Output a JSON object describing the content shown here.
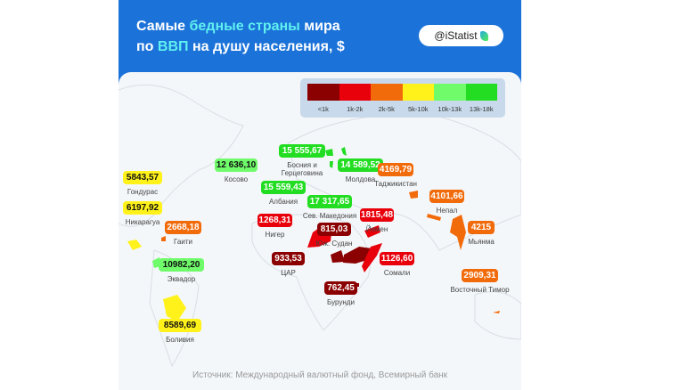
{
  "header": {
    "title_parts": [
      "Самые ",
      "бедные страны",
      " мира",
      "по ",
      "ВВП",
      " на душу населения, $"
    ],
    "brand": "@iStatist"
  },
  "legend": [
    {
      "label": "<1k",
      "color": "#8b0000"
    },
    {
      "label": "1k-2k",
      "color": "#e8000b"
    },
    {
      "label": "2k-5k",
      "color": "#f26b0b"
    },
    {
      "label": "5k-10k",
      "color": "#fff21a"
    },
    {
      "label": "10k-13k",
      "color": "#6ffb6a"
    },
    {
      "label": "13k-18k",
      "color": "#22dd22"
    }
  ],
  "countries": [
    {
      "name": "Косово",
      "value": "12 636,10",
      "cat": 4
    },
    {
      "name": "Босния и Герцеговина",
      "value": "15 555,67",
      "cat": 5
    },
    {
      "name": "Молдова",
      "value": "14 589,52",
      "cat": 5
    },
    {
      "name": "Албания",
      "value": "15 559,43",
      "cat": 5
    },
    {
      "name": "Сев. Македония",
      "value": "17 317,65",
      "cat": 5
    },
    {
      "name": "Нигер",
      "value": "1268,31",
      "cat": 1
    },
    {
      "name": "Юж. Судан",
      "value": "815,03",
      "cat": 0
    },
    {
      "name": "Йемен",
      "value": "1815,48",
      "cat": 1
    },
    {
      "name": "ЦАР",
      "value": "933,53",
      "cat": 0
    },
    {
      "name": "Сомали",
      "value": "1126,60",
      "cat": 1
    },
    {
      "name": "Бурунди",
      "value": "762,45",
      "cat": 0
    },
    {
      "name": "Таджикистан",
      "value": "4169,79",
      "cat": 2
    },
    {
      "name": "Непал",
      "value": "4101,66",
      "cat": 2
    },
    {
      "name": "Мьянма",
      "value": "4215",
      "cat": 2
    },
    {
      "name": "Восточный Тимор",
      "value": "2909,31",
      "cat": 2
    },
    {
      "name": "Гондурас",
      "value": "5843,57",
      "cat": 3
    },
    {
      "name": "Никарагуа",
      "value": "6197,92",
      "cat": 3
    },
    {
      "name": "Гаити",
      "value": "2668,18",
      "cat": 2
    },
    {
      "name": "Эквадор",
      "value": "10982,20",
      "cat": 4
    },
    {
      "name": "Боливия",
      "value": "8589,69",
      "cat": 3
    }
  ],
  "source": "Источник: Международный валютный фонд, Всемирный банк"
}
